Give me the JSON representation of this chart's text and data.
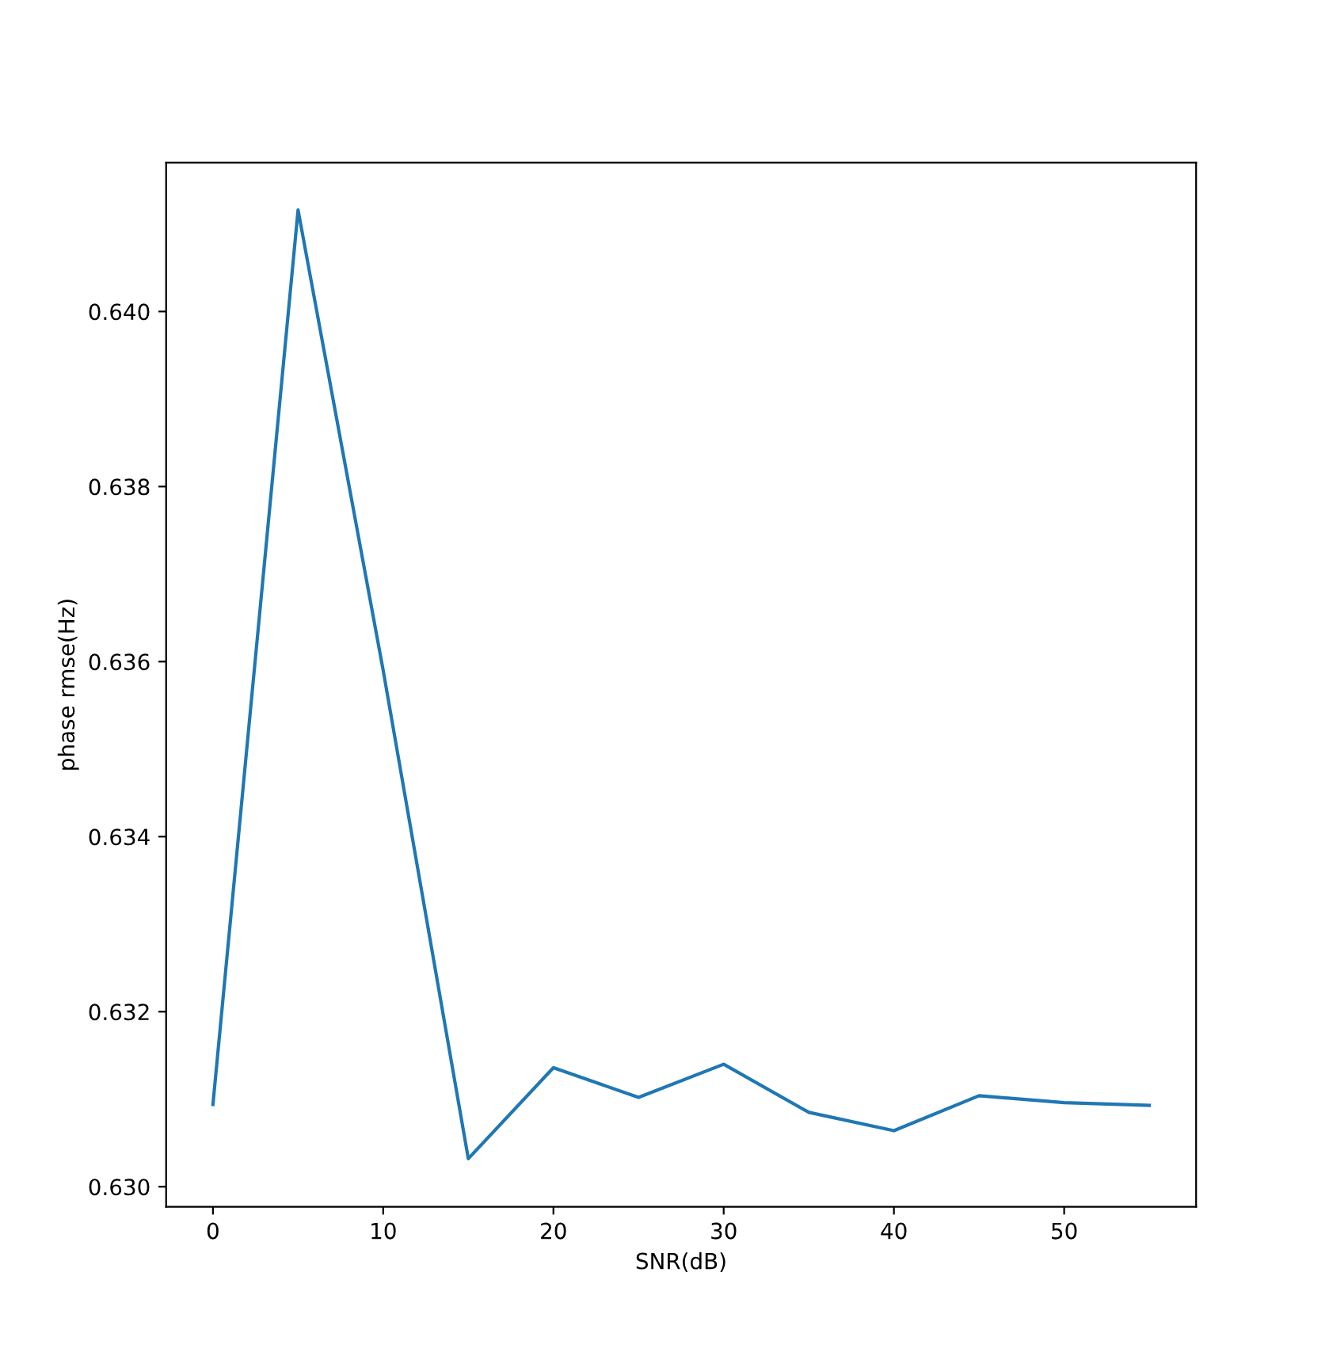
{
  "chart_data": {
    "type": "line",
    "xlabel": "SNR(dB)",
    "ylabel": "phase rmse(Hz)",
    "x": [
      0,
      5,
      10,
      15,
      20,
      25,
      30,
      35,
      40,
      45,
      50,
      55
    ],
    "series": [
      {
        "color": "#1f77b4",
        "values": [
          0.63094,
          0.64116,
          0.6359,
          0.63032,
          0.63136,
          0.63102,
          0.6314,
          0.63085,
          0.63064,
          0.63104,
          0.63096,
          0.63093
        ]
      }
    ],
    "xlim": [
      -2.75,
      57.75
    ],
    "xticks": [
      0,
      10,
      20,
      30,
      40,
      50
    ],
    "ylim": [
      0.62977,
      0.6417
    ],
    "yticks": [
      {
        "value": 0.63,
        "label": "0.630"
      },
      {
        "value": 0.632,
        "label": "0.632"
      },
      {
        "value": 0.634,
        "label": "0.634"
      },
      {
        "value": 0.636,
        "label": "0.636"
      },
      {
        "value": 0.638,
        "label": "0.638"
      },
      {
        "value": 0.64,
        "label": "0.640"
      }
    ],
    "grid": false,
    "marker": "none",
    "line_style": "solid"
  }
}
